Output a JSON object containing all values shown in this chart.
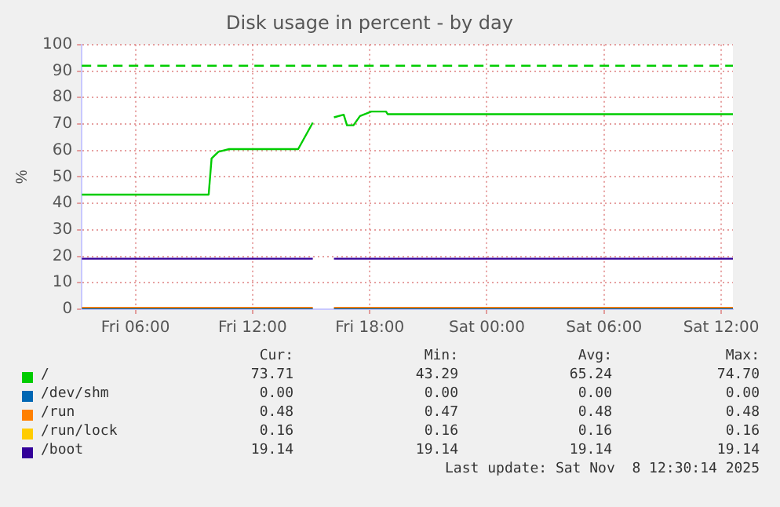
{
  "chart_data": {
    "type": "line",
    "title": "Disk usage in percent - by day",
    "ylabel": "%",
    "xlim": [
      "2025-11-07T03:15",
      "2025-11-08T12:36"
    ],
    "xticks": [
      {
        "value": "2025-11-07T06:00",
        "label": "Fri 06:00"
      },
      {
        "value": "2025-11-07T12:00",
        "label": "Fri 12:00"
      },
      {
        "value": "2025-11-07T18:00",
        "label": "Fri 18:00"
      },
      {
        "value": "2025-11-08T00:00",
        "label": "Sat 00:00"
      },
      {
        "value": "2025-11-08T06:00",
        "label": "Sat 06:00"
      },
      {
        "value": "2025-11-08T12:00",
        "label": "Sat 12:00"
      }
    ],
    "ylim": [
      0,
      100
    ],
    "yticks": [
      0,
      10,
      20,
      30,
      40,
      50,
      60,
      70,
      80,
      90,
      100
    ],
    "grid": true,
    "legend": "bottom",
    "marker": "none",
    "line_style": "solid",
    "series": [
      {
        "name": "/",
        "color": "#00cc00",
        "x": [
          "2025-11-07T03:15",
          "2025-11-07T09:45",
          "2025-11-07T09:54",
          "2025-11-07T10:15",
          "2025-11-07T10:48",
          "2025-11-07T14:20",
          "2025-11-07T15:05",
          "2025-11-07T15:36",
          "2025-11-07T16:10",
          "2025-11-07T16:40",
          "2025-11-07T16:50",
          "2025-11-07T17:10",
          "2025-11-07T17:30",
          "2025-11-07T18:05",
          "2025-11-07T18:50",
          "2025-11-07T18:55",
          "2025-11-08T12:36"
        ],
        "values": [
          43.3,
          43.3,
          57,
          59.5,
          60.5,
          60.5,
          70.5,
          null,
          72.5,
          73.5,
          69.5,
          69.5,
          73,
          74.7,
          74.7,
          73.7,
          73.7
        ]
      },
      {
        "name": "/dev/shm",
        "color": "#0066b3",
        "x": [
          "2025-11-07T03:15",
          "2025-11-07T15:05",
          "2025-11-07T15:36",
          "2025-11-07T16:10",
          "2025-11-08T12:36"
        ],
        "values": [
          0,
          0,
          null,
          0,
          0
        ]
      },
      {
        "name": "/run",
        "color": "#ff8000",
        "x": [
          "2025-11-07T03:15",
          "2025-11-07T15:05",
          "2025-11-07T15:36",
          "2025-11-07T16:10",
          "2025-11-08T12:36"
        ],
        "values": [
          0.5,
          0.5,
          null,
          0.5,
          0.5
        ]
      },
      {
        "name": "/run/lock",
        "color": "#ffcc00"
      },
      {
        "name": "/boot",
        "color": "#330099",
        "x": [
          "2025-11-07T03:15",
          "2025-11-07T15:05",
          "2025-11-07T15:36",
          "2025-11-07T16:10",
          "2025-11-08T12:36"
        ],
        "values": [
          19.1,
          19.1,
          null,
          19.1,
          19.1
        ]
      }
    ],
    "ref_lines": [
      {
        "axis": "y",
        "value": 92,
        "color": "#00cc00",
        "line_style": "dashed"
      }
    ],
    "annotations": [
      "Cur:",
      "Min:",
      "Avg:",
      "Max:",
      "73.71",
      "43.29",
      "65.24",
      "74.70",
      "0.00",
      "0.00",
      "0.00",
      "0.00",
      "0.48",
      "0.47",
      "0.48",
      "0.48",
      "0.16",
      "0.16",
      "0.16",
      "0.16",
      "19.14",
      "19.14",
      "19.14",
      "19.14",
      "Last update: Sat Nov  8 12:30:14 2025"
    ]
  }
}
